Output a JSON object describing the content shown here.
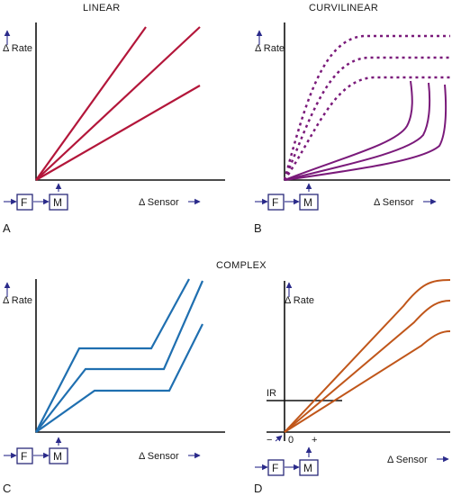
{
  "titles": {
    "linear": "LINEAR",
    "curvilinear": "CURVILINEAR",
    "complex": "COMPLEX"
  },
  "axis": {
    "rate": "Δ Rate",
    "sensor": "Δ Sensor"
  },
  "blocks": {
    "f": "F",
    "m": "M"
  },
  "panels": {
    "a": "A",
    "b": "B",
    "c": "C",
    "d": "D"
  },
  "panel_d": {
    "ir": "IR",
    "minus": "−",
    "zero": "0",
    "plus": "+"
  },
  "colors": {
    "linear": "#b3163a",
    "curvilinear": "#7a1a7a",
    "complex": "#1f6fb0",
    "panel_d": "#c0561a",
    "arrow": "#2a2a8a"
  }
}
